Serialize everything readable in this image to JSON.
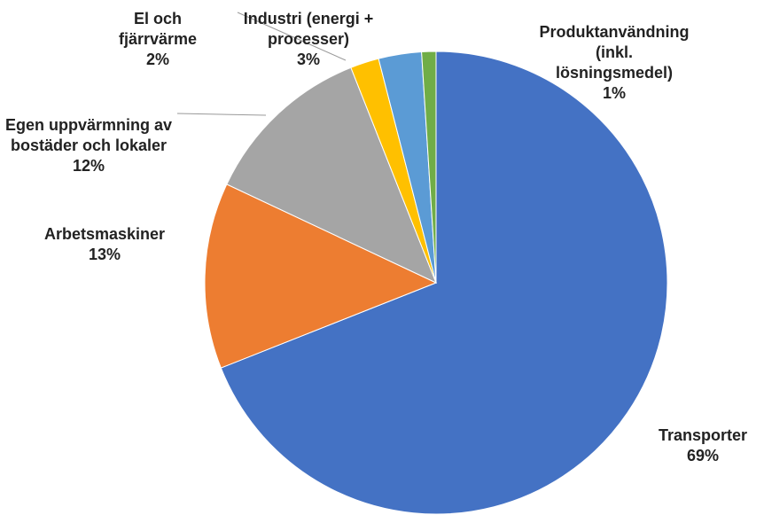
{
  "chart_data": {
    "type": "pie",
    "categories": [
      "Transporter",
      "Arbetsmaskiner",
      "Egen uppvärmning av bostäder och lokaler",
      "El och fjärrvärme",
      "Industri (energi + processer)",
      "Produktanvändning (inkl. lösningsmedel)"
    ],
    "values": [
      69,
      13,
      12,
      2,
      3,
      1
    ],
    "value_labels": [
      "69%",
      "13%",
      "12%",
      "2%",
      "3%",
      "1%"
    ],
    "colors": [
      "#4472c4",
      "#ed7d31",
      "#a5a5a5",
      "#ffc000",
      "#5b9bd5",
      "#70ad47"
    ]
  }
}
